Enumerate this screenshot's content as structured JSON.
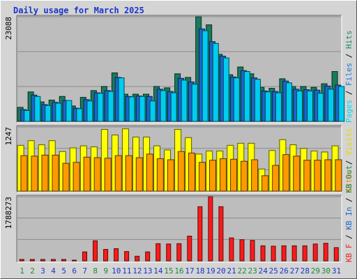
{
  "title": "Daily usage for March 2025",
  "chart_data": [
    {
      "type": "bar",
      "name": "hits-files-pages",
      "ymax_label": "23088",
      "ylim": [
        0,
        23088
      ],
      "legend": [
        "Pages",
        "/",
        "Files",
        "/",
        "Hits"
      ],
      "legend_colors": [
        "#00d8f0",
        "#000000",
        "#1a78e0",
        "#000000",
        "#1a8a5c"
      ],
      "days": [
        "1",
        "2",
        "3",
        "4",
        "5",
        "6",
        "7",
        "8",
        "9",
        "10",
        "11",
        "12",
        "13",
        "14",
        "15",
        "16",
        "17",
        "18",
        "19",
        "20",
        "21",
        "22",
        "23",
        "24",
        "25",
        "26",
        "27",
        "28",
        "29",
        "30",
        "31"
      ],
      "weekend_days": [
        1,
        2,
        8,
        9,
        15,
        16,
        22,
        23,
        29,
        30
      ],
      "series": [
        {
          "name": "Hits",
          "color": "#1a7a5e",
          "values": [
            3100,
            6500,
            4300,
            4700,
            5500,
            3400,
            5300,
            6800,
            7700,
            10700,
            6000,
            6000,
            6000,
            7700,
            7400,
            10500,
            9700,
            23088,
            21300,
            14800,
            10300,
            12000,
            10500,
            7500,
            7300,
            9400,
            7700,
            7700,
            7500,
            8300,
            11000
          ]
        },
        {
          "name": "Files",
          "color": "#1a66cc",
          "values": [
            2600,
            5800,
            3700,
            4200,
            4600,
            2900,
            4800,
            6300,
            6800,
            9700,
            5500,
            5600,
            5500,
            7100,
            6600,
            9500,
            8700,
            20400,
            17600,
            14400,
            9800,
            11200,
            9600,
            6700,
            6600,
            8900,
            7100,
            7000,
            6900,
            7800,
            8000
          ]
        },
        {
          "name": "Pages",
          "color": "#00ccf0",
          "values": [
            2400,
            5500,
            3500,
            4000,
            4600,
            2800,
            4500,
            6200,
            6600,
            9600,
            5400,
            5500,
            4500,
            6800,
            6300,
            9100,
            8200,
            20000,
            17200,
            14000,
            9600,
            11000,
            9300,
            6500,
            6300,
            8500,
            6700,
            6700,
            6200,
            7100,
            7700
          ]
        }
      ]
    },
    {
      "type": "bar",
      "name": "visits-sites",
      "ymax_label": "1247",
      "ylim": [
        0,
        1247
      ],
      "legend": [
        "Sites",
        "/",
        "Visits"
      ],
      "legend_colors": [
        "#ff8800",
        "#000000",
        "#e8d800"
      ],
      "series": [
        {
          "name": "Visits",
          "color": "#ffff00",
          "values": [
            890,
            980,
            900,
            980,
            770,
            840,
            880,
            860,
            1200,
            1090,
            1210,
            1050,
            1050,
            880,
            800,
            1200,
            1040,
            720,
            780,
            780,
            890,
            930,
            930,
            430,
            790,
            1000,
            900,
            830,
            780,
            760,
            880
          ]
        },
        {
          "name": "Sites",
          "color": "#ff9900",
          "values": [
            690,
            680,
            700,
            700,
            540,
            560,
            660,
            650,
            640,
            690,
            690,
            650,
            720,
            630,
            610,
            770,
            740,
            560,
            600,
            630,
            620,
            580,
            610,
            300,
            500,
            710,
            680,
            600,
            600,
            610,
            610
          ]
        }
      ]
    },
    {
      "type": "bar",
      "name": "kbytes",
      "ymax_label": "1788273",
      "ylim": [
        0,
        1788273
      ],
      "legend": [
        "KB F",
        "/",
        "KB In",
        "/",
        "KB Out"
      ],
      "legend_colors": [
        "#ee2222",
        "#000000",
        "#1a66cc",
        "#000000",
        "#1a8a5c"
      ],
      "series": [
        {
          "name": "KB F",
          "color": "#ff1a1a",
          "values": [
            40000,
            40000,
            40000,
            40000,
            40000,
            20000,
            250000,
            560000,
            320000,
            340000,
            260000,
            130000,
            250000,
            480000,
            470000,
            480000,
            690000,
            1510000,
            1788273,
            1510000,
            640000,
            590000,
            570000,
            420000,
            410000,
            420000,
            420000,
            420000,
            470000,
            490000,
            370000
          ]
        }
      ]
    }
  ]
}
